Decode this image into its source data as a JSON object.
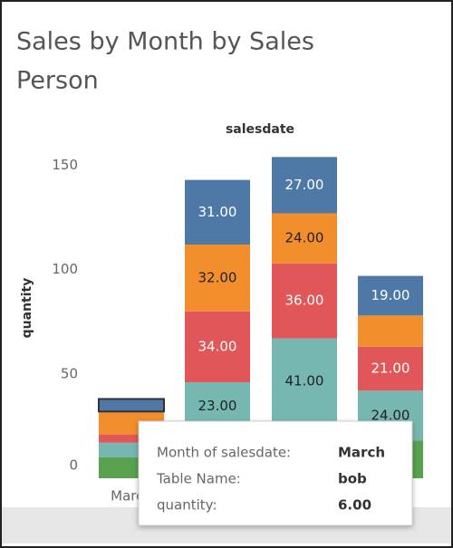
{
  "chart_data": {
    "type": "stacked_bar",
    "title": [
      "Sales by Month by Sales",
      "Person"
    ],
    "column_header": "salesdate",
    "y_label": "quantity",
    "categories": [
      "March",
      null,
      null,
      null
    ],
    "ylim": [
      0,
      155
    ],
    "yticks": [
      0,
      50,
      100,
      150
    ],
    "series": [
      {
        "color": "#59a14f",
        "values": [
          10,
          23,
          26,
          18
        ],
        "value_labels": [
          null,
          null,
          null,
          null
        ]
      },
      {
        "color": "#76b7b2",
        "values": [
          7,
          23,
          41,
          24
        ],
        "value_labels": [
          null,
          "23.00",
          "41.00",
          "24.00"
        ]
      },
      {
        "color": "#e15759",
        "values": [
          4,
          34,
          36,
          21
        ],
        "value_labels": [
          null,
          "34.00",
          "36.00",
          "21.00"
        ]
      },
      {
        "color": "#f28e2b",
        "values": [
          11,
          32,
          24,
          15
        ],
        "value_labels": [
          null,
          "32.00",
          "24.00",
          null
        ]
      },
      {
        "name": "bob",
        "color": "#4e79a7",
        "values": [
          6,
          31,
          27,
          19
        ],
        "value_labels": [
          null,
          "31.00",
          "27.00",
          "19.00"
        ]
      }
    ],
    "tooltip": {
      "rows": [
        {
          "label": "Month of salesdate:",
          "value": "March"
        },
        {
          "label": "Table Name:",
          "value": "bob"
        },
        {
          "label": "quantity:",
          "value": "6.00"
        }
      ]
    }
  }
}
